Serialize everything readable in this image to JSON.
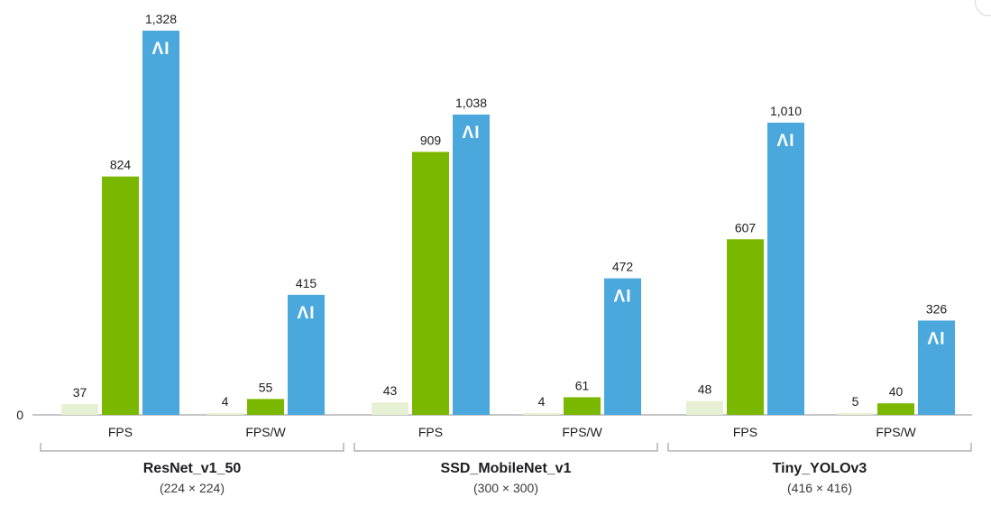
{
  "chart_data": {
    "type": "bar",
    "y_axis_label": "0",
    "ylim": [
      0,
      1328
    ],
    "colors": {
      "light": "#e5f1d2",
      "green": "#7ab800",
      "blue": "#4aa8dd"
    },
    "badge_text": "ΛI",
    "groups": [
      {
        "name": "ResNet_v1_50",
        "resolution": "(224 × 224)",
        "clusters": [
          {
            "label": "FPS",
            "values": [
              37,
              824,
              1328
            ],
            "labels": [
              "37",
              "824",
              "1,328"
            ]
          },
          {
            "label": "FPS/W",
            "values": [
              4,
              55,
              415
            ],
            "labels": [
              "4",
              "55",
              "415"
            ]
          }
        ]
      },
      {
        "name": "SSD_MobileNet_v1",
        "resolution": "(300 × 300)",
        "clusters": [
          {
            "label": "FPS",
            "values": [
              43,
              909,
              1038
            ],
            "labels": [
              "43",
              "909",
              "1,038"
            ]
          },
          {
            "label": "FPS/W",
            "values": [
              4,
              61,
              472
            ],
            "labels": [
              "4",
              "61",
              "472"
            ]
          }
        ]
      },
      {
        "name": "Tiny_YOLOv3",
        "resolution": "(416 × 416)",
        "clusters": [
          {
            "label": "FPS",
            "values": [
              48,
              607,
              1010
            ],
            "labels": [
              "48",
              "607",
              "1,010"
            ]
          },
          {
            "label": "FPS/W",
            "values": [
              5,
              40,
              326
            ],
            "labels": [
              "5",
              "40",
              "326"
            ]
          }
        ]
      }
    ]
  }
}
